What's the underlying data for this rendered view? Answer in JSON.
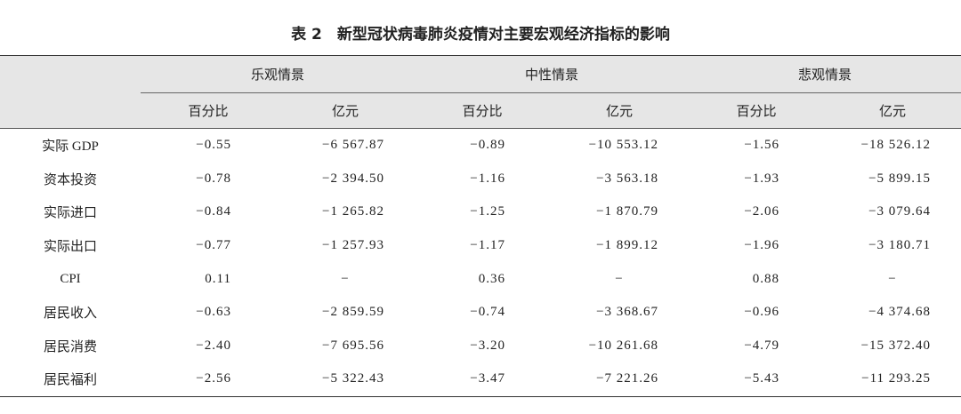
{
  "title": "表 2　新型冠状病毒肺炎疫情对主要宏观经济指标的影响",
  "table": {
    "groups": [
      "乐观情景",
      "中性情景",
      "悲观情景"
    ],
    "subheaders": [
      "百分比",
      "亿元",
      "百分比",
      "亿元",
      "百分比",
      "亿元"
    ],
    "rows": [
      {
        "label": "实际 GDP",
        "cells": [
          "−0.55",
          "−6 567.87",
          "−0.89",
          "−10 553.12",
          "−1.56",
          "−18 526.12"
        ]
      },
      {
        "label": "资本投资",
        "cells": [
          "−0.78",
          "−2 394.50",
          "−1.16",
          "−3 563.18",
          "−1.93",
          "−5 899.15"
        ]
      },
      {
        "label": "实际进口",
        "cells": [
          "−0.84",
          "−1 265.82",
          "−1.25",
          "−1 870.79",
          "−2.06",
          "−3 079.64"
        ]
      },
      {
        "label": "实际出口",
        "cells": [
          "−0.77",
          "−1 257.93",
          "−1.17",
          "−1 899.12",
          "−1.96",
          "−3 180.71"
        ]
      },
      {
        "label": "CPI",
        "cells": [
          "0.11",
          "−",
          "0.36",
          "−",
          "0.88",
          "−"
        ]
      },
      {
        "label": "居民收入",
        "cells": [
          "−0.63",
          "−2 859.59",
          "−0.74",
          "−3 368.67",
          "−0.96",
          "−4 374.68"
        ]
      },
      {
        "label": "居民消费",
        "cells": [
          "−2.40",
          "−7 695.56",
          "−3.20",
          "−10 261.68",
          "−4.79",
          "−15 372.40"
        ]
      },
      {
        "label": "居民福利",
        "cells": [
          "−2.56",
          "−5 322.43",
          "−3.47",
          "−7 221.26",
          "−5.43",
          "−11 293.25"
        ]
      }
    ]
  }
}
